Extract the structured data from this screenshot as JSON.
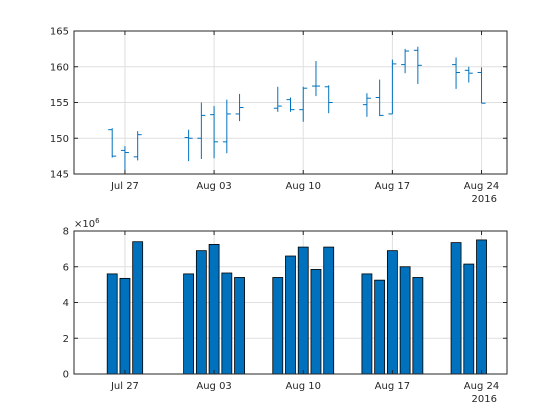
{
  "chart_data": [
    {
      "type": "ohlc",
      "title": "",
      "xlabel": "",
      "ylabel": "",
      "ylim": [
        145,
        165
      ],
      "yticks": [
        145,
        150,
        155,
        160,
        165
      ],
      "xtick_labels": [
        "Jul 27",
        "Aug 03",
        "Aug 10",
        "Aug 17",
        "Aug 24"
      ],
      "x_year_label": "2016",
      "grid": true,
      "color": "#0072BD",
      "points": [
        {
          "date": "2016-07-26",
          "open": 151.2,
          "high": 151.4,
          "low": 147.3,
          "close": 147.5
        },
        {
          "date": "2016-07-27",
          "open": 148.3,
          "high": 148.9,
          "low": 145.4,
          "close": 148.0
        },
        {
          "date": "2016-07-28",
          "open": 147.4,
          "high": 151.0,
          "low": 146.9,
          "close": 150.5
        },
        {
          "date": "2016-08-01",
          "open": 150.1,
          "high": 151.2,
          "low": 146.8,
          "close": 150.0
        },
        {
          "date": "2016-08-02",
          "open": 150.0,
          "high": 155.0,
          "low": 147.1,
          "close": 153.2
        },
        {
          "date": "2016-08-03",
          "open": 153.3,
          "high": 154.5,
          "low": 147.2,
          "close": 149.5
        },
        {
          "date": "2016-08-04",
          "open": 149.5,
          "high": 155.4,
          "low": 147.9,
          "close": 153.4
        },
        {
          "date": "2016-08-05",
          "open": 153.4,
          "high": 156.2,
          "low": 152.4,
          "close": 154.3
        },
        {
          "date": "2016-08-08",
          "open": 154.2,
          "high": 157.2,
          "low": 153.7,
          "close": 154.5
        },
        {
          "date": "2016-08-09",
          "open": 155.4,
          "high": 155.7,
          "low": 153.7,
          "close": 154.0
        },
        {
          "date": "2016-08-10",
          "open": 154.0,
          "high": 157.2,
          "low": 152.3,
          "close": 157.0
        },
        {
          "date": "2016-08-11",
          "open": 157.3,
          "high": 160.8,
          "low": 155.9,
          "close": 157.3
        },
        {
          "date": "2016-08-12",
          "open": 157.2,
          "high": 157.4,
          "low": 153.5,
          "close": 155.0
        },
        {
          "date": "2016-08-15",
          "open": 154.7,
          "high": 156.3,
          "low": 153.0,
          "close": 155.6
        },
        {
          "date": "2016-08-16",
          "open": 155.7,
          "high": 158.2,
          "low": 153.1,
          "close": 153.2
        },
        {
          "date": "2016-08-17",
          "open": 153.4,
          "high": 161.0,
          "low": 153.4,
          "close": 160.4
        },
        {
          "date": "2016-08-18",
          "open": 160.3,
          "high": 162.5,
          "low": 159.1,
          "close": 162.2
        },
        {
          "date": "2016-08-19",
          "open": 162.3,
          "high": 162.8,
          "low": 157.6,
          "close": 160.2
        },
        {
          "date": "2016-08-22",
          "open": 160.3,
          "high": 161.3,
          "low": 156.9,
          "close": 159.2
        },
        {
          "date": "2016-08-23",
          "open": 159.5,
          "high": 160.0,
          "low": 157.8,
          "close": 159.1
        },
        {
          "date": "2016-08-24",
          "open": 159.2,
          "high": 159.9,
          "low": 154.9,
          "close": 154.9
        }
      ]
    },
    {
      "type": "bar",
      "title": "",
      "xlabel": "",
      "ylabel": "",
      "ylim": [
        0,
        8000000
      ],
      "yticks": [
        0,
        2,
        4,
        6,
        8
      ],
      "y_exponent_label": "×10",
      "y_exponent": "6",
      "xtick_labels": [
        "Jul 27",
        "Aug 03",
        "Aug 10",
        "Aug 17",
        "Aug 24"
      ],
      "x_year_label": "2016",
      "grid": true,
      "color": "#0072BD",
      "edge_color": "#000000",
      "x": [
        "2016-07-26",
        "2016-07-27",
        "2016-07-28",
        "2016-08-01",
        "2016-08-02",
        "2016-08-03",
        "2016-08-04",
        "2016-08-05",
        "2016-08-08",
        "2016-08-09",
        "2016-08-10",
        "2016-08-11",
        "2016-08-12",
        "2016-08-15",
        "2016-08-16",
        "2016-08-17",
        "2016-08-18",
        "2016-08-19",
        "2016-08-22",
        "2016-08-23",
        "2016-08-24"
      ],
      "values": [
        5600000,
        5350000,
        7400000,
        5600000,
        6900000,
        7250000,
        5650000,
        5400000,
        5400000,
        6600000,
        7100000,
        5850000,
        7100000,
        5600000,
        5250000,
        6900000,
        6000000,
        5400000,
        7350000,
        6150000,
        7500000
      ]
    }
  ]
}
